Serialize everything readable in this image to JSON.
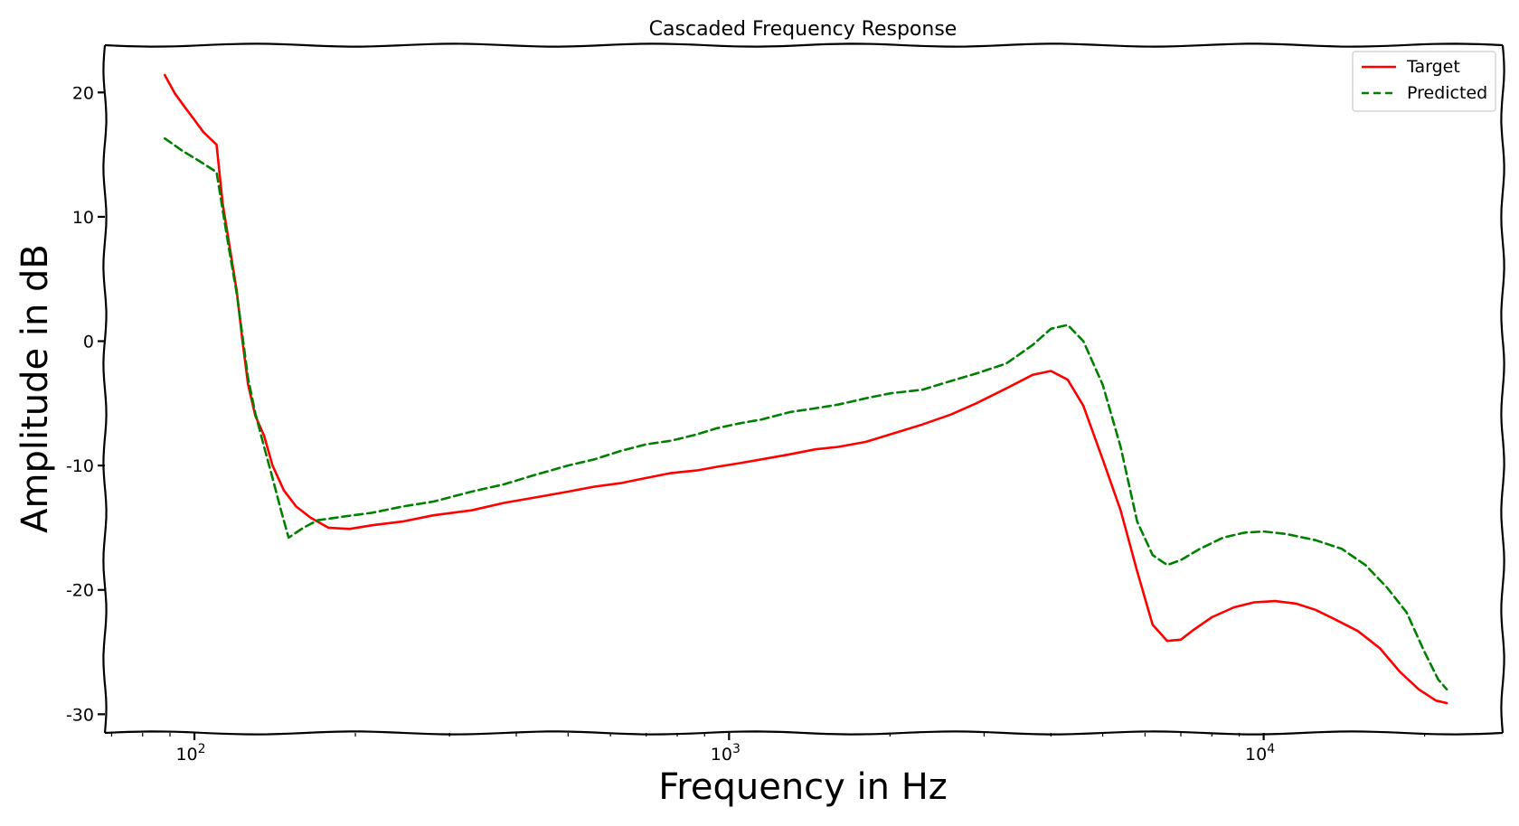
{
  "chart_data": {
    "type": "line",
    "title": "Cascaded Frequency Response",
    "xlabel": "Frequency in Hz",
    "ylabel": "Amplitude in dB",
    "xscale": "log",
    "xlim": [
      68,
      28000
    ],
    "ylim": [
      -31.5,
      23.8
    ],
    "grid": false,
    "legend_position": "top-right",
    "xticks": [
      {
        "value": 100,
        "base": "10",
        "exp": "2"
      },
      {
        "value": 1000,
        "base": "10",
        "exp": "3"
      },
      {
        "value": 10000,
        "base": "10",
        "exp": "4"
      }
    ],
    "yticks": [
      {
        "value": 20,
        "label": "20"
      },
      {
        "value": 10,
        "label": "10"
      },
      {
        "value": 0,
        "label": "0"
      },
      {
        "value": -10,
        "label": "-10"
      },
      {
        "value": -20,
        "label": "-20"
      },
      {
        "value": -30,
        "label": "-30"
      }
    ],
    "series": [
      {
        "name": "Target",
        "color": "#ff0000",
        "style": "solid",
        "points": [
          [
            88,
            21.4
          ],
          [
            92,
            19.9
          ],
          [
            96,
            18.8
          ],
          [
            100,
            17.8
          ],
          [
            104,
            16.8
          ],
          [
            110,
            15.8
          ],
          [
            113,
            11.0
          ],
          [
            116,
            8.0
          ],
          [
            120,
            4.0
          ],
          [
            123,
            0.0
          ],
          [
            126,
            -3.5
          ],
          [
            130,
            -6.0
          ],
          [
            135,
            -7.6
          ],
          [
            140,
            -10.0
          ],
          [
            147,
            -12.0
          ],
          [
            155,
            -13.3
          ],
          [
            165,
            -14.2
          ],
          [
            178,
            -15.0
          ],
          [
            195,
            -15.1
          ],
          [
            215,
            -14.8
          ],
          [
            245,
            -14.5
          ],
          [
            280,
            -14.0
          ],
          [
            330,
            -13.6
          ],
          [
            380,
            -13.0
          ],
          [
            430,
            -12.6
          ],
          [
            500,
            -12.1
          ],
          [
            560,
            -11.7
          ],
          [
            630,
            -11.4
          ],
          [
            700,
            -11.0
          ],
          [
            780,
            -10.6
          ],
          [
            870,
            -10.4
          ],
          [
            950,
            -10.1
          ],
          [
            1050,
            -9.8
          ],
          [
            1150,
            -9.5
          ],
          [
            1300,
            -9.1
          ],
          [
            1450,
            -8.7
          ],
          [
            1600,
            -8.5
          ],
          [
            1800,
            -8.1
          ],
          [
            2000,
            -7.5
          ],
          [
            2300,
            -6.7
          ],
          [
            2600,
            -5.9
          ],
          [
            2900,
            -5.0
          ],
          [
            3300,
            -3.8
          ],
          [
            3700,
            -2.7
          ],
          [
            4000,
            -2.4
          ],
          [
            4300,
            -3.1
          ],
          [
            4600,
            -5.2
          ],
          [
            5000,
            -9.5
          ],
          [
            5400,
            -13.6
          ],
          [
            5800,
            -18.5
          ],
          [
            6200,
            -22.8
          ],
          [
            6600,
            -24.1
          ],
          [
            7000,
            -24.0
          ],
          [
            7400,
            -23.2
          ],
          [
            8000,
            -22.2
          ],
          [
            8800,
            -21.4
          ],
          [
            9600,
            -21.0
          ],
          [
            10500,
            -20.9
          ],
          [
            11500,
            -21.1
          ],
          [
            12500,
            -21.6
          ],
          [
            13500,
            -22.3
          ],
          [
            15000,
            -23.3
          ],
          [
            16500,
            -24.7
          ],
          [
            18000,
            -26.6
          ],
          [
            19500,
            -28.0
          ],
          [
            21000,
            -28.9
          ],
          [
            22000,
            -29.1
          ]
        ]
      },
      {
        "name": "Predicted",
        "color": "#008000",
        "style": "dashed",
        "points": [
          [
            88,
            16.3
          ],
          [
            95,
            15.3
          ],
          [
            102,
            14.5
          ],
          [
            110,
            13.6
          ],
          [
            113,
            10.5
          ],
          [
            116,
            7.5
          ],
          [
            120,
            3.8
          ],
          [
            123,
            0.4
          ],
          [
            126,
            -3.0
          ],
          [
            130,
            -5.8
          ],
          [
            135,
            -8.5
          ],
          [
            140,
            -11.0
          ],
          [
            145,
            -13.5
          ],
          [
            150,
            -15.8
          ],
          [
            160,
            -15.0
          ],
          [
            170,
            -14.4
          ],
          [
            190,
            -14.1
          ],
          [
            215,
            -13.8
          ],
          [
            245,
            -13.3
          ],
          [
            280,
            -12.9
          ],
          [
            330,
            -12.1
          ],
          [
            380,
            -11.5
          ],
          [
            430,
            -10.8
          ],
          [
            500,
            -10.0
          ],
          [
            560,
            -9.5
          ],
          [
            630,
            -8.8
          ],
          [
            700,
            -8.3
          ],
          [
            780,
            -8.0
          ],
          [
            870,
            -7.5
          ],
          [
            950,
            -7.0
          ],
          [
            1050,
            -6.6
          ],
          [
            1150,
            -6.3
          ],
          [
            1300,
            -5.7
          ],
          [
            1450,
            -5.4
          ],
          [
            1600,
            -5.1
          ],
          [
            1800,
            -4.6
          ],
          [
            2000,
            -4.2
          ],
          [
            2300,
            -3.9
          ],
          [
            2600,
            -3.2
          ],
          [
            2900,
            -2.6
          ],
          [
            3300,
            -1.8
          ],
          [
            3700,
            -0.3
          ],
          [
            4000,
            1.0
          ],
          [
            4300,
            1.3
          ],
          [
            4600,
            0.0
          ],
          [
            5000,
            -3.5
          ],
          [
            5400,
            -8.5
          ],
          [
            5800,
            -14.5
          ],
          [
            6200,
            -17.2
          ],
          [
            6600,
            -18.0
          ],
          [
            7000,
            -17.6
          ],
          [
            7600,
            -16.7
          ],
          [
            8400,
            -15.8
          ],
          [
            9200,
            -15.4
          ],
          [
            10000,
            -15.3
          ],
          [
            11000,
            -15.5
          ],
          [
            12500,
            -16.0
          ],
          [
            14000,
            -16.7
          ],
          [
            15500,
            -18.0
          ],
          [
            17000,
            -19.8
          ],
          [
            18500,
            -21.8
          ],
          [
            20000,
            -25.0
          ],
          [
            21200,
            -27.2
          ],
          [
            22000,
            -28.0
          ]
        ]
      }
    ]
  }
}
